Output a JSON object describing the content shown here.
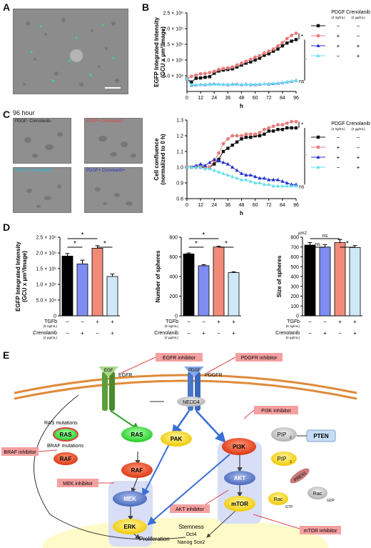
{
  "panels": {
    "A": "A",
    "B": "B",
    "C": "C",
    "D": "D",
    "E": "E"
  },
  "panel_c": {
    "time_label": "96 hour",
    "images": [
      {
        "label": "PDGF- Crenolanib-",
        "color": "#222222"
      },
      {
        "label": "PDGF+ Crenolanib-",
        "color": "#e04040"
      },
      {
        "label": "PDGF- Crenolanib+",
        "color": "#22bbdd"
      },
      {
        "label": "PDGF+ Crenolanib+",
        "color": "#2233cc"
      }
    ]
  },
  "legend_bc": {
    "header_pdgf": "PDGF",
    "header_pdgf_unit": "(2 ng/mL)",
    "header_cren": "Crenolanib",
    "header_cren_unit": "(2 µg/mL)",
    "rows": [
      {
        "pdgf": "−",
        "cren": "−",
        "color": "#111111",
        "marker": "square"
      },
      {
        "pdgf": "+",
        "cren": "−",
        "color": "#e87a7a",
        "marker": "circle"
      },
      {
        "pdgf": "+",
        "cren": "+",
        "color": "#2233cc",
        "marker": "triangle"
      },
      {
        "pdgf": "−",
        "cren": "+",
        "color": "#66ddee",
        "marker": "triangle"
      }
    ]
  },
  "chart_data": [
    {
      "id": "B",
      "type": "line",
      "ylabel": "EGFP Integrated Intensity (GCU x µm²/Image)",
      "xlabel": "h",
      "x_ticks": [
        "0",
        "12",
        "24",
        "36",
        "48",
        "60",
        "72",
        "84",
        "96"
      ],
      "y_ticks": [
        "5.0 × 10⁴",
        "1.0 × 10⁵",
        "1.5 × 10⁵",
        "2.0 × 10⁵",
        "2.5 × 10⁵"
      ],
      "xlim": [
        0,
        96
      ],
      "ylim": [
        0,
        250000
      ],
      "annotations": [
        "*",
        "*",
        "ns"
      ],
      "series": [
        {
          "color": "#111111",
          "marker": "square",
          "x": [
            0,
            4,
            8,
            12,
            16,
            20,
            24,
            28,
            32,
            36,
            40,
            44,
            48,
            52,
            56,
            60,
            64,
            68,
            72,
            76,
            80,
            84,
            88,
            92,
            96
          ],
          "y": [
            40000,
            30000,
            42000,
            43000,
            45000,
            47000,
            58000,
            65000,
            68000,
            70000,
            72000,
            78000,
            84000,
            90000,
            94000,
            100000,
            106000,
            115000,
            120000,
            128000,
            135000,
            145000,
            154000,
            160000,
            165000
          ]
        },
        {
          "color": "#e87a7a",
          "marker": "circle",
          "x": [
            0,
            4,
            8,
            12,
            16,
            20,
            24,
            28,
            32,
            36,
            40,
            44,
            48,
            52,
            56,
            60,
            64,
            68,
            72,
            76,
            80,
            84,
            88,
            92,
            96
          ],
          "y": [
            40000,
            48000,
            52000,
            56000,
            57000,
            60000,
            64000,
            70000,
            73000,
            75000,
            78000,
            84000,
            90000,
            96000,
            102000,
            109000,
            114000,
            122000,
            128000,
            135000,
            145000,
            155000,
            168000,
            178000,
            185000
          ]
        },
        {
          "color": "#2233cc",
          "marker": "triangle",
          "x": [
            0,
            4,
            8,
            12,
            16,
            20,
            24,
            28,
            32,
            36,
            40,
            44,
            48,
            52,
            56,
            60,
            64,
            68,
            72,
            76,
            80,
            84,
            88,
            92,
            96
          ],
          "y": [
            40000,
            20000,
            21000,
            22000,
            22000,
            23000,
            24000,
            23000,
            22000,
            22000,
            23000,
            23000,
            22000,
            23000,
            22000,
            22000,
            23000,
            24000,
            24000,
            25000,
            26000,
            28000,
            30000,
            32000,
            35000
          ]
        },
        {
          "color": "#66ddee",
          "marker": "triangle",
          "x": [
            0,
            4,
            8,
            12,
            16,
            20,
            24,
            28,
            32,
            36,
            40,
            44,
            48,
            52,
            56,
            60,
            64,
            68,
            72,
            76,
            80,
            84,
            88,
            92,
            96
          ],
          "y": [
            40000,
            21000,
            22000,
            22000,
            23000,
            22000,
            23000,
            23000,
            22000,
            23000,
            22000,
            22000,
            23000,
            22000,
            23000,
            23000,
            24000,
            24000,
            25000,
            26000,
            27000,
            29000,
            31000,
            33000,
            34000
          ]
        }
      ]
    },
    {
      "id": "C",
      "type": "line",
      "ylabel": "Cell confluence (normalized to 0 h)",
      "xlabel": "h",
      "x_ticks": [
        "0",
        "12",
        "24",
        "36",
        "48",
        "60",
        "72",
        "84",
        "96"
      ],
      "y_ticks": [
        "0.8",
        "0.9",
        "1.0",
        "1.1",
        "1.2",
        "1.3"
      ],
      "xlim": [
        0,
        96
      ],
      "ylim": [
        0.8,
        1.3
      ],
      "annotations": [
        "*",
        "*",
        "ns"
      ],
      "series": [
        {
          "color": "#111111",
          "marker": "square",
          "x": [
            0,
            4,
            8,
            12,
            16,
            20,
            24,
            28,
            32,
            36,
            40,
            44,
            48,
            52,
            56,
            60,
            64,
            68,
            72,
            76,
            80,
            84,
            88,
            92,
            96
          ],
          "y": [
            1.0,
            1.0,
            1.0,
            1.0,
            1.0,
            1.0,
            1.02,
            1.05,
            1.1,
            1.12,
            1.14,
            1.16,
            1.18,
            1.19,
            1.19,
            1.2,
            1.2,
            1.21,
            1.23,
            1.23,
            1.24,
            1.24,
            1.25,
            1.25,
            1.25
          ]
        },
        {
          "color": "#e87a7a",
          "marker": "circle",
          "x": [
            0,
            4,
            8,
            12,
            16,
            20,
            24,
            28,
            32,
            36,
            40,
            44,
            48,
            52,
            56,
            60,
            64,
            68,
            72,
            76,
            80,
            84,
            88,
            92,
            96
          ],
          "y": [
            1.0,
            1.0,
            1.0,
            1.01,
            1.0,
            1.0,
            1.04,
            1.09,
            1.15,
            1.18,
            1.2,
            1.2,
            1.2,
            1.21,
            1.21,
            1.21,
            1.22,
            1.24,
            1.25,
            1.26,
            1.27,
            1.27,
            1.28,
            1.29,
            1.29
          ]
        },
        {
          "color": "#2233cc",
          "marker": "triangle",
          "x": [
            0,
            4,
            8,
            12,
            16,
            20,
            24,
            28,
            32,
            36,
            40,
            44,
            48,
            52,
            56,
            60,
            64,
            68,
            72,
            76,
            80,
            84,
            88,
            92,
            96
          ],
          "y": [
            1.0,
            1.0,
            1.01,
            1.02,
            1.01,
            1.03,
            1.05,
            1.04,
            1.03,
            1.02,
            1.0,
            0.98,
            0.96,
            0.95,
            0.95,
            0.94,
            0.93,
            0.93,
            0.92,
            0.92,
            0.92,
            0.91,
            0.9,
            0.89,
            0.89
          ]
        },
        {
          "color": "#66ddee",
          "marker": "triangle",
          "x": [
            0,
            4,
            8,
            12,
            16,
            20,
            24,
            28,
            32,
            36,
            40,
            44,
            48,
            52,
            56,
            60,
            64,
            68,
            72,
            76,
            80,
            84,
            88,
            92,
            96
          ],
          "y": [
            1.0,
            1.0,
            1.0,
            1.0,
            0.99,
            0.99,
            0.98,
            0.97,
            0.96,
            0.95,
            0.94,
            0.93,
            0.92,
            0.92,
            0.91,
            0.9,
            0.9,
            0.89,
            0.89,
            0.88,
            0.88,
            0.88,
            0.88,
            0.88,
            0.88
          ]
        }
      ]
    },
    {
      "id": "D1",
      "type": "bar",
      "ylabel": "EGFP Integrated Intensity (GCU x µm²/Image)",
      "y_ticks": [
        "0",
        "5.0 × 10⁴",
        "1.0 × 10⁵",
        "1.5 × 10⁵",
        "2.0 × 10⁵",
        "2.5 × 10⁵"
      ],
      "ylim": [
        0,
        250000
      ],
      "values": [
        190000,
        165000,
        215000,
        125000
      ],
      "errors": [
        8000,
        12000,
        8000,
        8000
      ],
      "colors": [
        "#000000",
        "#7f8df2",
        "#f28a7a",
        "#cfe8f8"
      ],
      "sig": [
        {
          "from": 0,
          "to": 1,
          "label": "*",
          "level": 1
        },
        {
          "from": 2,
          "to": 3,
          "label": "*",
          "level": 1
        },
        {
          "from": 0,
          "to": 2,
          "label": "*",
          "level": 2
        }
      ]
    },
    {
      "id": "D2",
      "type": "bar",
      "ylabel": "Number of spheres",
      "y_ticks": [
        "0",
        "200",
        "400",
        "600",
        "800"
      ],
      "ylim": [
        0,
        800
      ],
      "values": [
        630,
        510,
        700,
        440
      ],
      "errors": [
        10,
        10,
        8,
        8
      ],
      "colors": [
        "#000000",
        "#7f8df2",
        "#f28a7a",
        "#cfe8f8"
      ],
      "sig": [
        {
          "from": 0,
          "to": 1,
          "label": "*",
          "level": 1
        },
        {
          "from": 2,
          "to": 3,
          "label": "*",
          "level": 1
        },
        {
          "from": 0,
          "to": 2,
          "label": "*",
          "level": 2
        }
      ]
    },
    {
      "id": "D3",
      "type": "bar",
      "ylabel": "Size of spheres",
      "yunit": "µm2",
      "y_ticks": [
        "0",
        "100",
        "200",
        "300",
        "400",
        "500",
        "600",
        "700",
        "800"
      ],
      "ylim": [
        0,
        800
      ],
      "values": [
        720,
        700,
        745,
        695
      ],
      "errors": [
        25,
        25,
        30,
        20
      ],
      "colors": [
        "#000000",
        "#7f8df2",
        "#f28a7a",
        "#cfe8f8"
      ],
      "sig": [
        {
          "from": 0,
          "to": 1,
          "label": "ns",
          "level": 1
        },
        {
          "from": 2,
          "to": 3,
          "label": "*",
          "level": 1
        },
        {
          "from": 0,
          "to": 2,
          "label": "ns",
          "level": 2
        }
      ]
    }
  ],
  "bar_axis": {
    "tgfb": "TGFb",
    "tgfb_unit": "(5 ng/mL)",
    "cren": "Crenolanib",
    "cren_unit": "(2 µg/mL)",
    "tgfb_signs": [
      "−",
      "−",
      "+",
      "+"
    ],
    "cren_signs": [
      "−",
      "+",
      "−",
      "+"
    ]
  },
  "pathway": {
    "inhibitors": {
      "egfr": "EGFR inhibitor",
      "pdgfr": "PDGFR inhibitor",
      "pi3k": "PI3K inhibitor",
      "braf": "BRAF inhibitor",
      "mek": "MEK inhibitor",
      "akt": "AKT inhibitor",
      "mtor": "mTOR inhibitor"
    },
    "nodes": {
      "egf": "EGF",
      "egfr": "EGFR",
      "pdgf": "PDGF",
      "pdgfr": "PDGFR",
      "nedd4": "NEDD4",
      "ras_mut": "RAS mutations",
      "ras_mut_node": "RAS",
      "ras": "RAS",
      "braf_mut": "BRAF mutations",
      "raf_mut_node": "RAF",
      "raf": "RAF",
      "pak": "PAK",
      "pi3k": "PI3K",
      "pip2": "PIP",
      "pip2_sub": "2",
      "pip3": "PIP",
      "pip3_sub": "3",
      "pten": "PTEN",
      "prex1": "PREX1",
      "rac_gdp": "Rac",
      "gdp": "GDP",
      "rac_gtp": "Rac",
      "gtp": "GTP",
      "akt": "AKT",
      "mtor": "mTOR",
      "mek": "MEK",
      "erk": "ERK",
      "proliferation": "Proliferation",
      "stemness": "Stemness",
      "oct4": "Oct4",
      "nanog_sox2": "Nanog Sox2"
    }
  }
}
